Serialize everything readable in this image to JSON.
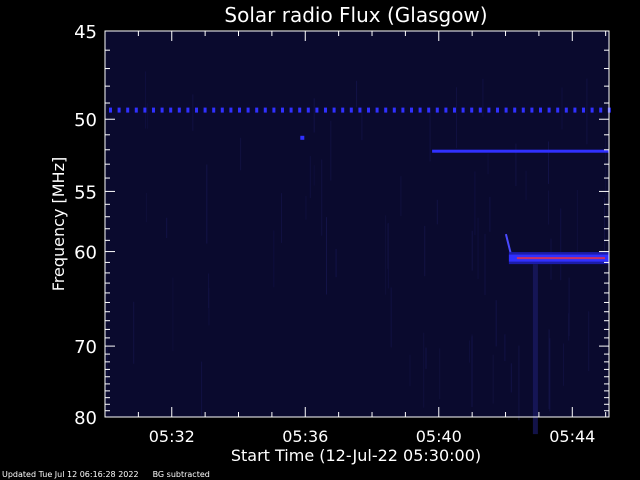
{
  "chart_data": {
    "type": "heatmap",
    "title": "Solar radio Flux (Glasgow)",
    "xlabel": "Start Time (12-Jul-22 05:30:00)",
    "ylabel": "Frequency [MHz]",
    "x_ticks": [
      "05:32",
      "05:36",
      "05:40",
      "05:44"
    ],
    "x_tick_minutes": [
      2,
      6,
      10,
      14
    ],
    "xlim_minutes": [
      0,
      15.1
    ],
    "y_ticks": [
      45,
      50,
      55,
      60,
      70,
      80
    ],
    "ylim": [
      45,
      80
    ],
    "y_scale": "reciprocal",
    "background_color": "#0a0a2e",
    "emission_color": "#3030ff",
    "peak_color": "#ff3030",
    "features": [
      {
        "name": "dotted-band",
        "freq": 49.4,
        "t_start": 0.0,
        "t_end": 15.1,
        "style": "dotted"
      },
      {
        "name": "spot",
        "freq": 51.2,
        "t_start": 5.85,
        "t_end": 5.95,
        "style": "dot"
      },
      {
        "name": "band-52",
        "freq": 52.1,
        "t_start": 9.8,
        "t_end": 15.1,
        "style": "solid"
      },
      {
        "name": "band-60",
        "freq": 60.6,
        "t_start": 12.1,
        "t_end": 15.1,
        "style": "strong"
      }
    ]
  },
  "footer": {
    "updated": "Updated Tue Jul 12 06:16:28 2022",
    "note": "BG subtracted"
  }
}
